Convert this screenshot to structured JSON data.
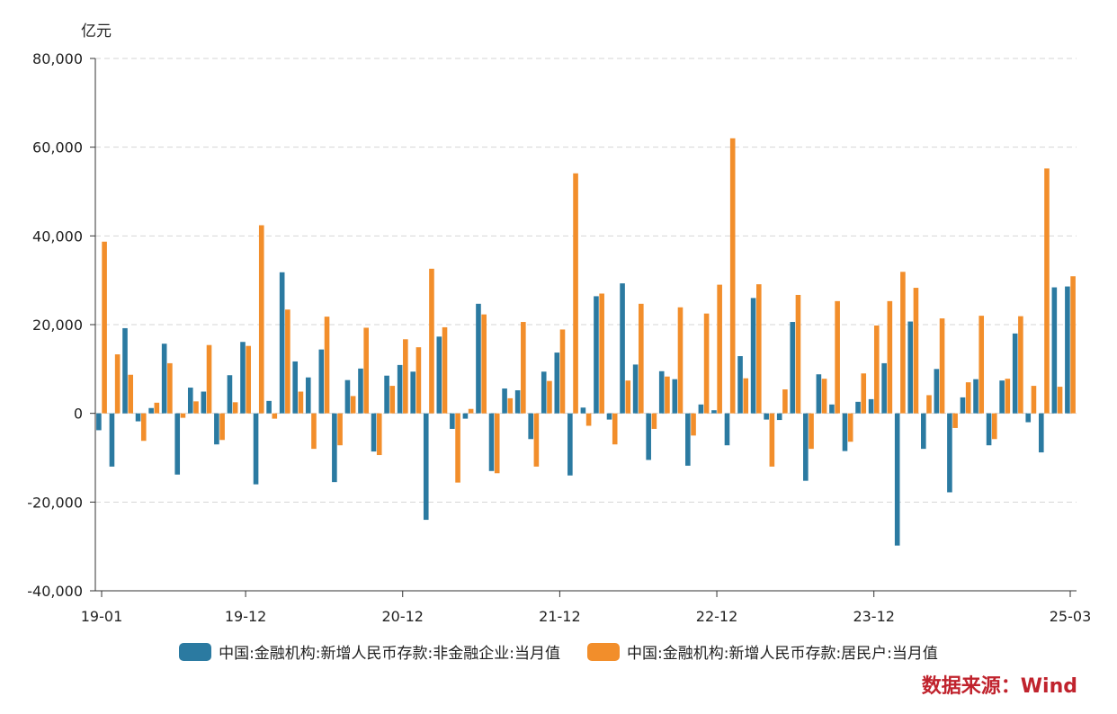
{
  "chart_data": {
    "type": "bar",
    "unit_label": "亿元",
    "ylim": [
      -40000,
      80000
    ],
    "yticks": [
      -40000,
      -20000,
      0,
      20000,
      40000,
      60000,
      80000
    ],
    "ytick_labels": [
      "-40,000",
      "-20,000",
      "0",
      "20,000",
      "40,000",
      "60,000",
      "80,000"
    ],
    "grid": true,
    "legend_position": "bottom",
    "xtick_labels": [
      {
        "i": 0,
        "label": "19-01"
      },
      {
        "i": 11,
        "label": "19-12"
      },
      {
        "i": 23,
        "label": "20-12"
      },
      {
        "i": 35,
        "label": "21-12"
      },
      {
        "i": 47,
        "label": "22-12"
      },
      {
        "i": 59,
        "label": "23-12"
      },
      {
        "i": 74,
        "label": "25-03"
      }
    ],
    "categories": [
      "19-01",
      "19-02",
      "19-03",
      "19-04",
      "19-05",
      "19-06",
      "19-07",
      "19-08",
      "19-09",
      "19-10",
      "19-11",
      "19-12",
      "20-01",
      "20-02",
      "20-03",
      "20-04",
      "20-05",
      "20-06",
      "20-07",
      "20-08",
      "20-09",
      "20-10",
      "20-11",
      "20-12",
      "21-01",
      "21-02",
      "21-03",
      "21-04",
      "21-05",
      "21-06",
      "21-07",
      "21-08",
      "21-09",
      "21-10",
      "21-11",
      "21-12",
      "22-01",
      "22-02",
      "22-03",
      "22-04",
      "22-05",
      "22-06",
      "22-07",
      "22-08",
      "22-09",
      "22-10",
      "22-11",
      "22-12",
      "23-01",
      "23-02",
      "23-03",
      "23-04",
      "23-05",
      "23-06",
      "23-07",
      "23-08",
      "23-09",
      "23-10",
      "23-11",
      "23-12",
      "24-01",
      "24-02",
      "24-03",
      "24-04",
      "24-05",
      "24-06",
      "24-07",
      "24-08",
      "24-09",
      "24-10",
      "24-11",
      "24-12",
      "25-01",
      "25-02",
      "25-03"
    ],
    "series": [
      {
        "name": "中国:金融机构:新增人民币存款:非金融企业:当月值",
        "color": "#2b7aa1",
        "values": [
          -3800,
          -12000,
          19200,
          -1800,
          1200,
          15700,
          -13800,
          5800,
          4900,
          -7000,
          8600,
          16100,
          -16000,
          2800,
          31800,
          11700,
          8100,
          14400,
          -15500,
          7500,
          10100,
          -8600,
          8500,
          10900,
          9400,
          -24000,
          17300,
          -3500,
          -1200,
          24700,
          -13000,
          5600,
          5200,
          -5800,
          9400,
          13700,
          -14000,
          1300,
          26400,
          -1400,
          29300,
          11000,
          -10500,
          9500,
          7700,
          -11800,
          2000,
          700,
          -7200,
          12900,
          26000,
          -1400,
          -1500,
          20600,
          -15200,
          8800,
          2000,
          -8500,
          2600,
          3200,
          11300,
          -29800,
          20700,
          -8000,
          10000,
          -17800,
          3600,
          7700,
          -7200,
          7400,
          18000,
          -2000,
          -8800,
          28400,
          28600
        ]
      },
      {
        "name": "中国:金融机构:新增人民币存款:居民户:当月值",
        "color": "#f28e2b",
        "values": [
          38700,
          13300,
          8700,
          -6200,
          2400,
          11300,
          -1000,
          2700,
          15400,
          -6000,
          2500,
          15200,
          42400,
          -1200,
          23400,
          4900,
          -8000,
          21800,
          -7200,
          3900,
          19300,
          -9400,
          6200,
          16700,
          14900,
          32600,
          19400,
          -15600,
          1000,
          22300,
          -13500,
          3400,
          20600,
          -12000,
          7300,
          18900,
          54100,
          -2800,
          27000,
          -7000,
          7400,
          24700,
          -3500,
          8300,
          23900,
          -5000,
          22500,
          29000,
          62000,
          7900,
          29100,
          -12000,
          5400,
          26700,
          -8000,
          7800,
          25300,
          -6400,
          9000,
          19800,
          25300,
          31900,
          28300,
          4100,
          21400,
          -3300,
          7000,
          22000,
          -5800,
          7800,
          21900,
          6200,
          55200,
          6000,
          30900
        ]
      }
    ],
    "legend_entries": [
      "中国:金融机构:新增人民币存款:非金融企业:当月值",
      "中国:金融机构:新增人民币存款:居民户:当月值"
    ]
  },
  "source_text": "数据来源：Wind"
}
